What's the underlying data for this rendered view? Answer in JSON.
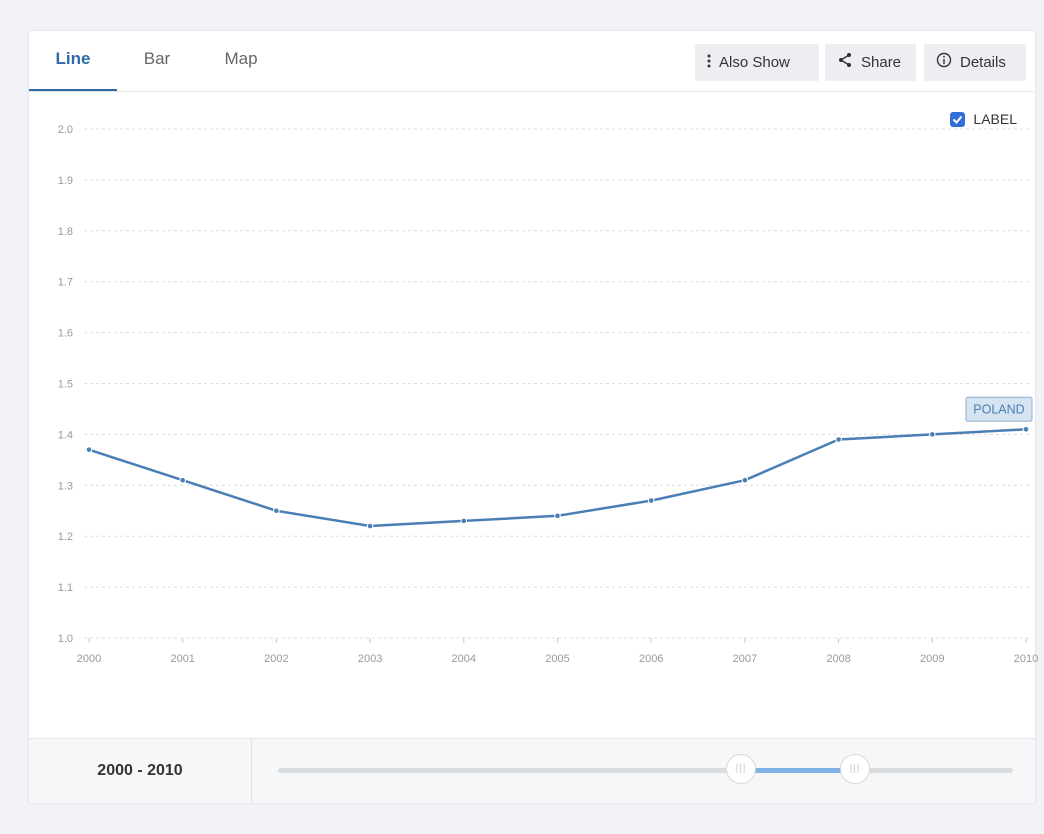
{
  "tabs": [
    {
      "label": "Line",
      "active": true
    },
    {
      "label": "Bar",
      "active": false
    },
    {
      "label": "Map",
      "active": false
    }
  ],
  "toolbar": {
    "also_show": "Also Show",
    "share": "Share",
    "details": "Details"
  },
  "label_toggle": {
    "label": "LABEL",
    "checked": true
  },
  "series_label": "POLAND",
  "accent": "#4a7fb5",
  "chart_data": {
    "type": "line",
    "title": "",
    "xlabel": "",
    "ylabel": "",
    "x": [
      2000,
      2001,
      2002,
      2003,
      2004,
      2005,
      2006,
      2007,
      2008,
      2009,
      2010
    ],
    "series": [
      {
        "name": "POLAND",
        "values": [
          1.37,
          1.31,
          1.25,
          1.22,
          1.23,
          1.24,
          1.27,
          1.31,
          1.39,
          1.4,
          1.41
        ]
      }
    ],
    "ylim": [
      1.0,
      2.0
    ],
    "yticks": [
      "1.0",
      "1.1",
      "1.2",
      "1.3",
      "1.4",
      "1.5",
      "1.6",
      "1.7",
      "1.8",
      "1.9",
      "2.0"
    ],
    "xticks": [
      "2000",
      "2001",
      "2002",
      "2003",
      "2004",
      "2005",
      "2006",
      "2007",
      "2008",
      "2009",
      "2010"
    ],
    "grid": true
  },
  "range": {
    "label": "2000 - 2010",
    "start": 0.63,
    "end": 0.785
  }
}
